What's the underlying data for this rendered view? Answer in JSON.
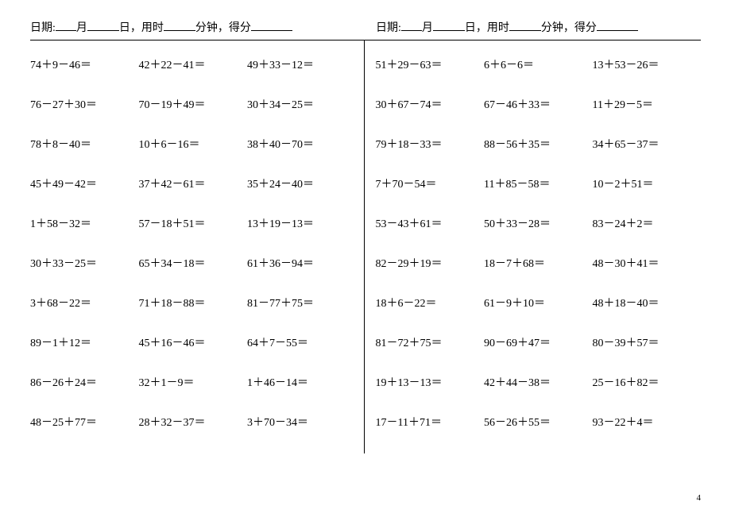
{
  "header": {
    "date_label": "日期:",
    "month_suffix": "月",
    "day_suffix": "日，用时",
    "minute_suffix": "分钟，得分"
  },
  "left": {
    "rows": [
      [
        "74＋9－46＝",
        "42＋22－41＝",
        "49＋33－12＝"
      ],
      [
        "76－27＋30＝",
        "70－19＋49＝",
        "30＋34－25＝"
      ],
      [
        "78＋8－40＝",
        "10＋6－16＝",
        "38＋40－70＝"
      ],
      [
        "45＋49－42＝",
        "37＋42－61＝",
        "35＋24－40＝"
      ],
      [
        "1＋58－32＝",
        "57－18＋51＝",
        "13＋19－13＝"
      ],
      [
        "30＋33－25＝",
        "65＋34－18＝",
        "61＋36－94＝"
      ],
      [
        "3＋68－22＝",
        "71＋18－88＝",
        "81－77＋75＝"
      ],
      [
        "89－1＋12＝",
        "45＋16－46＝",
        "64＋7－55＝"
      ],
      [
        "86－26＋24＝",
        "32＋1－9＝",
        "1＋46－14＝"
      ],
      [
        "48－25＋77＝",
        "28＋32－37＝",
        "3＋70－34＝"
      ]
    ]
  },
  "right": {
    "rows": [
      [
        "51＋29－63＝",
        "6＋6－6＝",
        "13＋53－26＝"
      ],
      [
        "30＋67－74＝",
        "67－46＋33＝",
        "11＋29－5＝"
      ],
      [
        "79＋18－33＝",
        "88－56＋35＝",
        "34＋65－37＝"
      ],
      [
        "7＋70－54＝",
        "11＋85－58＝",
        "10－2＋51＝"
      ],
      [
        "53－43＋61＝",
        "50＋33－28＝",
        "83－24＋2＝"
      ],
      [
        "82－29＋19＝",
        "18－7＋68＝",
        "48－30＋41＝"
      ],
      [
        "18＋6－22＝",
        "61－9＋10＝",
        "48＋18－40＝"
      ],
      [
        "81－72＋75＝",
        "90－69＋47＝",
        "80－39＋57＝"
      ],
      [
        "19＋13－13＝",
        "42＋44－38＝",
        "25－16＋82＝"
      ],
      [
        "17－11＋71＝",
        "56－26＋55＝",
        "93－22＋4＝"
      ]
    ]
  },
  "page_number": "4"
}
